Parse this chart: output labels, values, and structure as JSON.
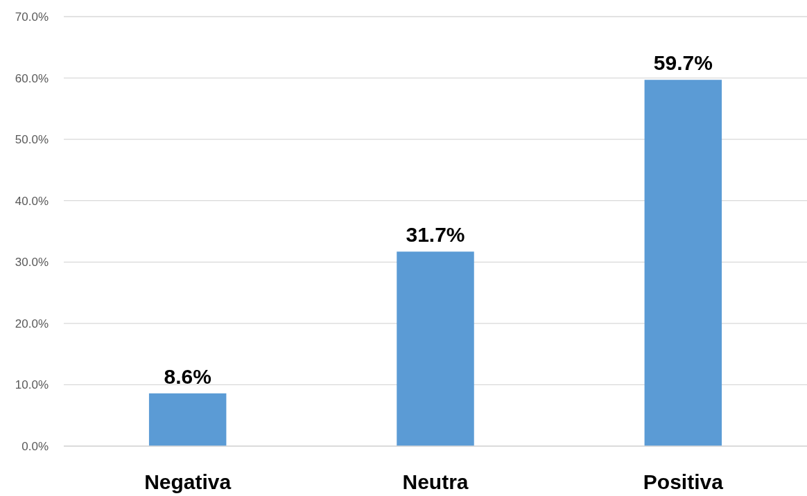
{
  "chart_data": {
    "type": "bar",
    "categories": [
      "Negativa",
      "Neutra",
      "Positiva"
    ],
    "values": [
      8.6,
      31.7,
      59.7
    ],
    "color": "#5b9bd5",
    "value_labels": [
      "8.6%",
      "31.7%",
      "59.7%"
    ],
    "ylim": [
      0,
      70
    ],
    "yticks": [
      {
        "value": 0,
        "label": "0.0%"
      },
      {
        "value": 10,
        "label": "10.0%"
      },
      {
        "value": 20,
        "label": "20.0%"
      },
      {
        "value": 30,
        "label": "30.0%"
      },
      {
        "value": 40,
        "label": "40.0%"
      },
      {
        "value": 50,
        "label": "50.0%"
      },
      {
        "value": 60,
        "label": "60.0%"
      },
      {
        "value": 70,
        "label": "70.0%"
      }
    ],
    "grid": "y"
  }
}
